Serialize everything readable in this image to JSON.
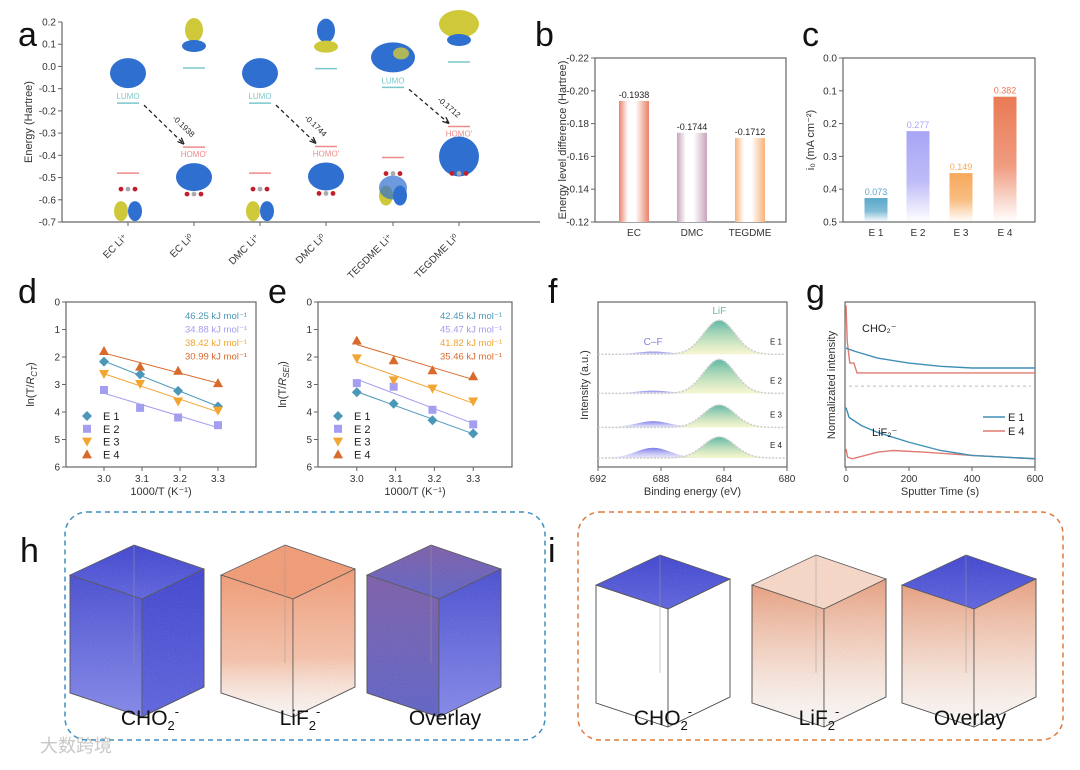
{
  "panel_letters": {
    "a": "a",
    "b": "b",
    "c": "c",
    "d": "d",
    "e": "e",
    "f": "f",
    "g": "g",
    "h": "h",
    "i": "i"
  },
  "watermark": "大数跨境",
  "chart_data": [
    {
      "panel": "a",
      "type": "scatter",
      "ylabel": "Energy (Hartree)",
      "ylim": [
        -0.7,
        0.2
      ],
      "yticks": [
        "0.2",
        "0.1",
        "0.0",
        "-0.1",
        "-0.2",
        "-0.3",
        "-0.4",
        "-0.5",
        "-0.6",
        "-0.7"
      ],
      "categories": [
        "EC Li⁺",
        "EC Li⁰",
        "DMC Li⁺",
        "DMC Li⁰",
        "TEGDME Li⁺",
        "TEGDME Li⁰"
      ],
      "levels": [
        {
          "category": 0,
          "lumo": -0.165,
          "homo": -0.48
        },
        {
          "category": 1,
          "lumo": -0.007,
          "homo": -0.363
        },
        {
          "category": 2,
          "lumo": -0.165,
          "homo": -0.48
        },
        {
          "category": 3,
          "lumo": -0.01,
          "homo": -0.36
        },
        {
          "category": 4,
          "lumo": -0.094,
          "homo": -0.41
        },
        {
          "category": 5,
          "lumo": 0.02,
          "homo": -0.27
        }
      ],
      "lumo_label": "LUMO",
      "homo_label": "HOMO'",
      "transitions": [
        {
          "from": 0,
          "to": 1,
          "label": "-0.1938"
        },
        {
          "from": 2,
          "to": 3,
          "label": "-0.1744"
        },
        {
          "from": 4,
          "to": 5,
          "label": "-0.1712"
        }
      ],
      "colors": {
        "lumo": "#7cc7c9",
        "homo": "#ef8a8a",
        "orbital_pos": "#2f6fd0",
        "orbital_neg": "#cfc93a"
      }
    },
    {
      "panel": "b",
      "type": "bar",
      "ylabel": "Energy level difference (Hartree)",
      "ylim": [
        -0.12,
        -0.22
      ],
      "yticks": [
        "-0.22",
        "-0.20",
        "-0.18",
        "-0.16",
        "-0.14",
        "-0.12"
      ],
      "categories": [
        "EC",
        "DMC",
        "TEGDME"
      ],
      "values": [
        -0.1938,
        -0.1744,
        -0.1712
      ],
      "labels": [
        "-0.1938",
        "-0.1744",
        "-0.1712"
      ],
      "colors": [
        "#e8826a",
        "#c9a4bd",
        "#f7b27a"
      ]
    },
    {
      "panel": "c",
      "type": "bar",
      "ylabel": "i₀ (mA cm⁻²)",
      "ylim": [
        0,
        0.5
      ],
      "yticks": [
        "0.0",
        "0.1",
        "0.2",
        "0.3",
        "0.4",
        "0.5"
      ],
      "categories": [
        "E 1",
        "E 2",
        "E 3",
        "E 4"
      ],
      "values": [
        0.073,
        0.277,
        0.149,
        0.382
      ],
      "labels": [
        "0.073",
        "0.277",
        "0.149",
        "0.382"
      ],
      "colors": [
        "#5aa7c9",
        "#a8a5f5",
        "#f6a85a",
        "#ea7a55"
      ]
    },
    {
      "panel": "d",
      "type": "scatter",
      "xlabel": "1000/T (K⁻¹)",
      "ylabel": "ln(T/R_CT)",
      "xlim": [
        2.9,
        3.4
      ],
      "ylim": [
        0,
        6
      ],
      "xticks": [
        "3.0",
        "3.1",
        "3.2",
        "3.3"
      ],
      "yticks": [
        "0",
        "1",
        "2",
        "3",
        "4",
        "5",
        "6"
      ],
      "x": [
        3.0,
        3.095,
        3.195,
        3.3
      ],
      "series": [
        {
          "name": "E 1",
          "values": [
            3.83,
            3.37,
            2.77,
            2.2
          ],
          "ea": "46.25 kJ mol⁻¹",
          "color": "#4b97b8",
          "marker": "diamond"
        },
        {
          "name": "E 2",
          "values": [
            2.8,
            2.15,
            1.8,
            1.52
          ],
          "ea": "34.88 kJ mol⁻¹",
          "color": "#a49ef0",
          "marker": "square"
        },
        {
          "name": "E 3",
          "values": [
            3.38,
            3.02,
            2.38,
            2.05
          ],
          "ea": "38.42 kJ mol⁻¹",
          "color": "#f2a531",
          "marker": "tri-down"
        },
        {
          "name": "E 4",
          "values": [
            4.22,
            3.65,
            3.5,
            3.05
          ],
          "ea": "30.99 kJ mol⁻¹",
          "color": "#d86a2c",
          "marker": "tri-up"
        }
      ],
      "legend": "bottom-left"
    },
    {
      "panel": "e",
      "type": "scatter",
      "xlabel": "1000/T (K⁻¹)",
      "ylabel": "ln(T/R_SEI)",
      "xlim": [
        2.9,
        3.4
      ],
      "ylim": [
        0,
        6
      ],
      "xticks": [
        "3.0",
        "3.1",
        "3.2",
        "3.3"
      ],
      "yticks": [
        "0",
        "1",
        "2",
        "3",
        "4",
        "5",
        "6"
      ],
      "x": [
        3.0,
        3.095,
        3.195,
        3.3
      ],
      "series": [
        {
          "name": "E 1",
          "values": [
            2.72,
            2.3,
            1.7,
            1.22
          ],
          "ea": "42.45 kJ mol⁻¹",
          "color": "#4b97b8",
          "marker": "diamond"
        },
        {
          "name": "E 2",
          "values": [
            3.05,
            2.92,
            2.08,
            1.55
          ],
          "ea": "45.47 kJ mol⁻¹",
          "color": "#a49ef0",
          "marker": "square"
        },
        {
          "name": "E 3",
          "values": [
            3.95,
            3.15,
            2.85,
            2.38
          ],
          "ea": "41.82 kJ mol⁻¹",
          "color": "#f2a531",
          "marker": "tri-down"
        },
        {
          "name": "E 4",
          "values": [
            4.6,
            3.88,
            3.52,
            3.3
          ],
          "ea": "35.46 kJ mol⁻¹",
          "color": "#d86a2c",
          "marker": "tri-up"
        }
      ],
      "legend": "bottom-left"
    },
    {
      "panel": "f",
      "type": "area",
      "xlabel": "Binding energy (eV)",
      "ylabel": "Intensity (a.u.)",
      "xlim": [
        692,
        680
      ],
      "xticks": [
        "692",
        "688",
        "684",
        "680"
      ],
      "peak_labels": {
        "cf": "C–F",
        "lif": "LiF"
      },
      "peak_centers": {
        "cf": 688.5,
        "lif": 684.3
      },
      "series": [
        {
          "name": "E 1",
          "offset": 3.05,
          "lif": 1.0,
          "cf": 0.08
        },
        {
          "name": "E 2",
          "offset": 1.9,
          "lif": 1.0,
          "cf": 0.08
        },
        {
          "name": "E 3",
          "offset": 0.9,
          "lif": 0.66,
          "cf": 0.18
        },
        {
          "name": "E 4",
          "offset": 0.0,
          "lif": 0.62,
          "cf": 0.3
        }
      ]
    },
    {
      "panel": "g",
      "type": "line",
      "xlabel": "Sputter Time (s)",
      "ylabel": "Normalizated intensity",
      "xlim": [
        0,
        600
      ],
      "ylim": [
        0,
        1
      ],
      "xticks": [
        "0",
        "200",
        "400",
        "600"
      ],
      "annotations": [
        "CHO₂⁻",
        "LiF₂⁻"
      ],
      "divider": 0.49,
      "series": [
        {
          "name": "E 1",
          "color": "#3f8fb5",
          "cho2": [
            [
              0,
              0.72
            ],
            [
              30,
              0.7
            ],
            [
              100,
              0.66
            ],
            [
              200,
              0.63
            ],
            [
              300,
              0.61
            ],
            [
              400,
              0.6
            ],
            [
              600,
              0.6
            ]
          ],
          "lif2": [
            [
              0,
              0.36
            ],
            [
              10,
              0.3
            ],
            [
              50,
              0.25
            ],
            [
              100,
              0.21
            ],
            [
              200,
              0.15
            ],
            [
              300,
              0.1
            ],
            [
              400,
              0.07
            ],
            [
              600,
              0.05
            ]
          ]
        },
        {
          "name": "E 4",
          "color": "#e07a70",
          "cho2": [
            [
              0,
              0.98
            ],
            [
              4,
              0.76
            ],
            [
              12,
              0.63
            ],
            [
              25,
              0.63
            ],
            [
              35,
              0.57
            ],
            [
              600,
              0.57
            ]
          ],
          "lif2": [
            [
              0,
              0.11
            ],
            [
              5,
              0.06
            ],
            [
              20,
              0.05
            ],
            [
              100,
              0.09
            ],
            [
              150,
              0.1
            ],
            [
              250,
              0.09
            ],
            [
              400,
              0.07
            ],
            [
              600,
              0.05
            ]
          ]
        }
      ],
      "legend": "right"
    }
  ],
  "tof_sims": {
    "h": {
      "labels": [
        "CHO₂⁻",
        "LiF₂⁻",
        "Overlay"
      ],
      "frame_color": "#3f8fc0"
    },
    "i": {
      "labels": [
        "CHO₂⁻",
        "LiF₂⁻",
        "Overlay"
      ],
      "frame_color": "#e07a3a"
    }
  }
}
